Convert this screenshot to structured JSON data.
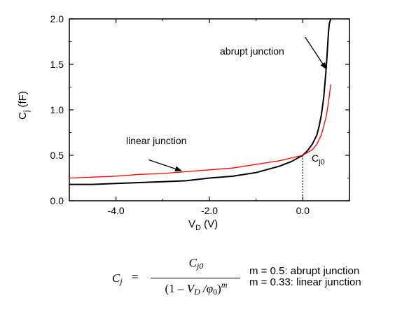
{
  "chart_data": {
    "type": "line",
    "xlabel": "V",
    "xlabel_sub": "D",
    "xlabel_unit": "(V)",
    "ylabel": "C",
    "ylabel_sub": "j",
    "ylabel_unit": "(fF)",
    "xlim": [
      -5,
      1
    ],
    "ylim": [
      0,
      2
    ],
    "x_ticks": [
      -4,
      -2,
      0
    ],
    "x_tick_labels": [
      "-4.0",
      "-2.0",
      "0.0"
    ],
    "y_ticks": [
      0,
      0.5,
      1,
      1.5,
      2
    ],
    "y_tick_labels": [
      "0.0",
      "0.5",
      "1.0",
      "1.5",
      "2.0"
    ],
    "grid": false,
    "series": [
      {
        "color": "#000000",
        "x": [
          -5,
          -4.5,
          -4,
          -3.5,
          -3,
          -2.5,
          -2,
          -1.5,
          -1,
          -0.5,
          -0.25,
          0,
          0.1,
          0.2,
          0.3,
          0.35,
          0.4,
          0.45,
          0.5,
          0.52,
          0.55,
          0.57,
          0.6
        ],
        "y": [
          0.18,
          0.18,
          0.19,
          0.2,
          0.21,
          0.22,
          0.25,
          0.27,
          0.31,
          0.38,
          0.43,
          0.5,
          0.55,
          0.62,
          0.72,
          0.82,
          0.95,
          1.14,
          1.45,
          1.6,
          1.85,
          1.95,
          2.0
        ]
      },
      {
        "color": "#ff0000",
        "x": [
          -5,
          -4.5,
          -4,
          -3.5,
          -3,
          -2.5,
          -2,
          -1.5,
          -1,
          -0.5,
          -0.25,
          0,
          0.1,
          0.2,
          0.3,
          0.4,
          0.5,
          0.55,
          0.6
        ],
        "y": [
          0.25,
          0.26,
          0.27,
          0.29,
          0.3,
          0.32,
          0.34,
          0.36,
          0.4,
          0.44,
          0.47,
          0.5,
          0.53,
          0.56,
          0.62,
          0.73,
          0.92,
          1.08,
          1.28
        ]
      }
    ],
    "annotations": {
      "abrupt": "abrupt junction",
      "linear": "linear junction",
      "cj0_main": "C",
      "cj0_sub": "j0"
    },
    "guide_x": 0,
    "guide_y": 0.5,
    "arrow_abrupt": {
      "from": [
        0.05,
        1.8
      ],
      "to": [
        0.5,
        1.45
      ]
    },
    "arrow_linear": {
      "from": [
        -3.3,
        0.45
      ],
      "to": [
        -2.6,
        0.33
      ]
    }
  },
  "formula": {
    "lhs": "C",
    "lhs_sub": "j",
    "eq": "=",
    "num": "C",
    "num_sub": "j0",
    "den_open": "(1 – ",
    "den_v": "V",
    "den_v_sub": "D",
    "den_slash": " /φ",
    "den_phi_sub": "0",
    "den_close": ")",
    "den_exp": "m"
  },
  "notes": [
    "m = 0.5: abrupt junction",
    "m = 0.33: linear junction"
  ]
}
